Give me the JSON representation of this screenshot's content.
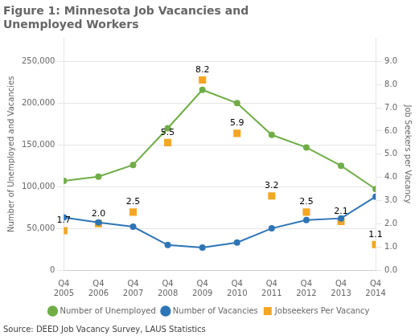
{
  "chart_data": {
    "type": "line",
    "title": "Figure 1: Minnesota Job Vacancies and\nUnemployed Workers",
    "annotations": [
      "Source: DEED Job Vacancy Survey, LAUS Statistics"
    ],
    "categories": [
      "Q4\n2005",
      "Q4\n2006",
      "Q4\n2007",
      "Q4\n2008",
      "Q4\n2009",
      "Q4\n2010",
      "Q4\n2011",
      "Q4\n2012",
      "Q4\n2013",
      "Q4\n2014"
    ],
    "series": [
      {
        "name": "Number of Unemployed",
        "color": "#70ad47",
        "marker": "circle",
        "values": [
          107000,
          112000,
          126000,
          170000,
          216000,
          200000,
          162000,
          147000,
          125000,
          97000
        ]
      },
      {
        "name": "Number of Vacancies",
        "color": "#2e75b6",
        "marker": "circle",
        "values": [
          63000,
          57000,
          52000,
          30000,
          27000,
          33000,
          50000,
          60000,
          62000,
          88000
        ]
      },
      {
        "name": "Jobseekers Per Vacancy",
        "color": "#f5a623",
        "marker": "square",
        "type": "scatter",
        "axis": "y2",
        "data_labels": true,
        "values": [
          1.7,
          2.0,
          2.5,
          5.5,
          8.2,
          5.9,
          3.2,
          2.5,
          2.1,
          1.1
        ],
        "value_labels": [
          "1.7",
          "2.0",
          "2.5",
          "5.5",
          "8.2",
          "5.9",
          "3.2",
          "2.5",
          "2.1",
          "1.1"
        ]
      }
    ],
    "ylim": [
      0,
      277778
    ],
    "yticks": [
      0,
      {
        "value": 50000,
        "label": "50,000"
      },
      {
        "value": 100000,
        "label": "100,000"
      },
      {
        "value": 150000,
        "label": "150,000"
      },
      {
        "value": 200000,
        "label": "200,000"
      },
      {
        "value": 250000,
        "label": "250,000"
      }
    ],
    "y2lim": [
      0,
      10.0
    ],
    "y2ticks": [
      {
        "value": 0,
        "label": "0.0"
      },
      {
        "value": 1,
        "label": "1.0"
      },
      {
        "value": 2,
        "label": "2.0"
      },
      {
        "value": 3,
        "label": "3.0"
      },
      {
        "value": 4,
        "label": "4.0"
      },
      {
        "value": 5,
        "label": "5.0"
      },
      {
        "value": 6,
        "label": "6.0"
      },
      {
        "value": 7,
        "label": "7.0"
      },
      {
        "value": 8,
        "label": "8.0"
      },
      {
        "value": 9,
        "label": "9.0"
      }
    ],
    "ylabel": "Number of Unemployed and Vacancies",
    "y2label": "Job Seekers per Vacancy",
    "grid": true,
    "legend": "bottom"
  }
}
